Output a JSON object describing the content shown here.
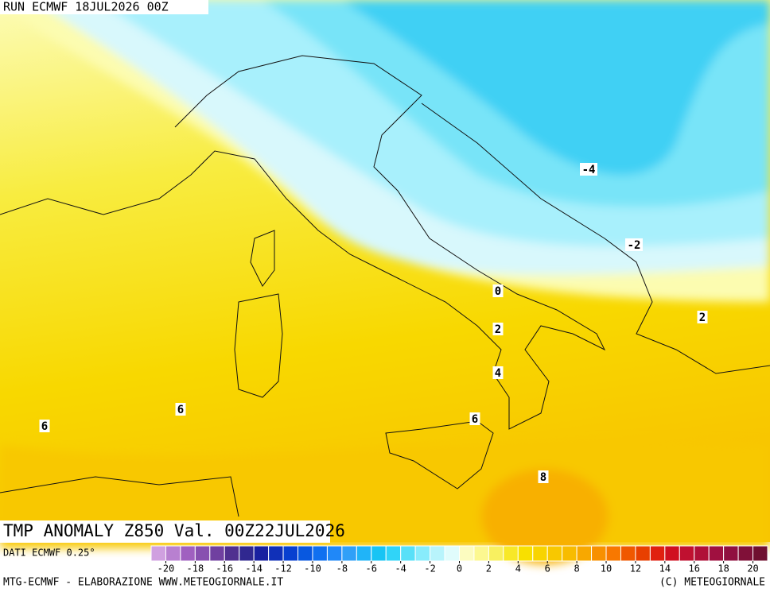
{
  "header": {
    "run": "RUN ECMWF 18JUL2026 00Z",
    "title": "TMP ANOMALY Z850 Val. 00Z22JUL2026"
  },
  "contour_labels": [
    -4,
    -2,
    0,
    2,
    4,
    6,
    6,
    6,
    8,
    2
  ],
  "colorbar": {
    "lim": [
      -21,
      21
    ],
    "ticks": [
      -20,
      -18,
      -16,
      -14,
      -12,
      -10,
      -8,
      -6,
      -4,
      -2,
      0,
      2,
      4,
      6,
      8,
      10,
      12,
      14,
      16,
      18,
      20
    ],
    "colors": [
      "#d0a0e0",
      "#b880d0",
      "#a060c0",
      "#8850b0",
      "#7040a0",
      "#503090",
      "#302890",
      "#1820a0",
      "#1030b8",
      "#0840d0",
      "#0858e0",
      "#1070f0",
      "#2088f8",
      "#30a0f8",
      "#20b4f8",
      "#18c4f4",
      "#30d4f8",
      "#58e0f8",
      "#88ecfc",
      "#b8f4fc",
      "#e0fcfc",
      "#fcfcc0",
      "#fcf890",
      "#f8f060",
      "#f8e828",
      "#f8e000",
      "#f8d400",
      "#f8c800",
      "#f8bc00",
      "#f8a800",
      "#f89000",
      "#f87800",
      "#f05800",
      "#e84000",
      "#e02010",
      "#d01020",
      "#c01030",
      "#b01038",
      "#a01040",
      "#901040",
      "#801038",
      "#701030"
    ]
  },
  "footer": {
    "source": "DATI ECMWF 0.25°",
    "credit": "MTG-ECMWF - ELABORAZIONE WWW.METEOGIORNALE.IT",
    "copyright": "(C) METEOGIORNALE"
  }
}
